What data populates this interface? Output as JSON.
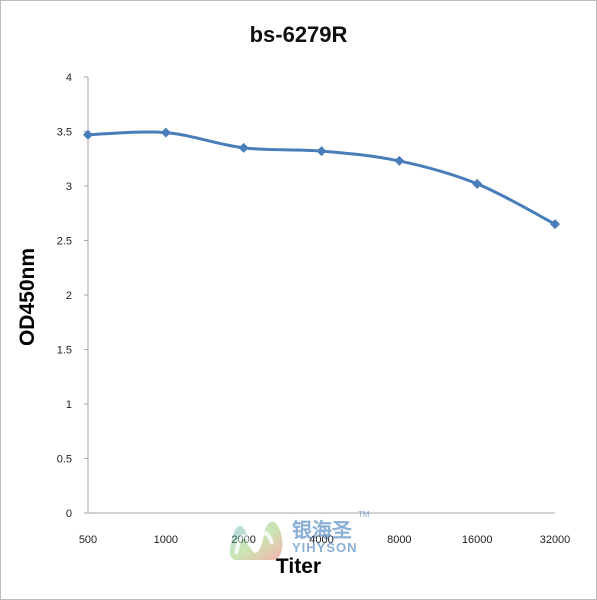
{
  "chart_data": {
    "type": "line",
    "title": "bs-6279R",
    "xlabel": "Titer",
    "ylabel": "OD450nm",
    "categories": [
      "500",
      "1000",
      "2000",
      "4000",
      "8000",
      "16000",
      "32000"
    ],
    "series": [
      {
        "values": [
          3.47,
          3.49,
          3.35,
          3.32,
          3.23,
          3.02,
          2.65
        ]
      }
    ],
    "ylim": [
      0,
      4
    ],
    "yticks": [
      "0",
      "0.5",
      "1",
      "1.5",
      "2",
      "2.5",
      "3",
      "3.5",
      "4"
    ],
    "grid": false,
    "legend": "none",
    "line_color": "#4a7ebb"
  },
  "watermark": {
    "chinese_text": "银海圣",
    "english_text": "YIHYSON",
    "trademark": "TM"
  }
}
